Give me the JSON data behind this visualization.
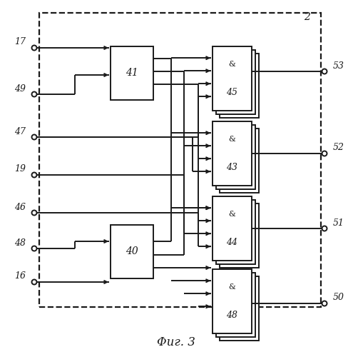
{
  "figure_width": 4.95,
  "figure_height": 5.0,
  "dpi": 100,
  "bg_color": "#ffffff",
  "line_color": "#1a1a1a",
  "title": "Φиг. 3",
  "title_fontsize": 12
}
